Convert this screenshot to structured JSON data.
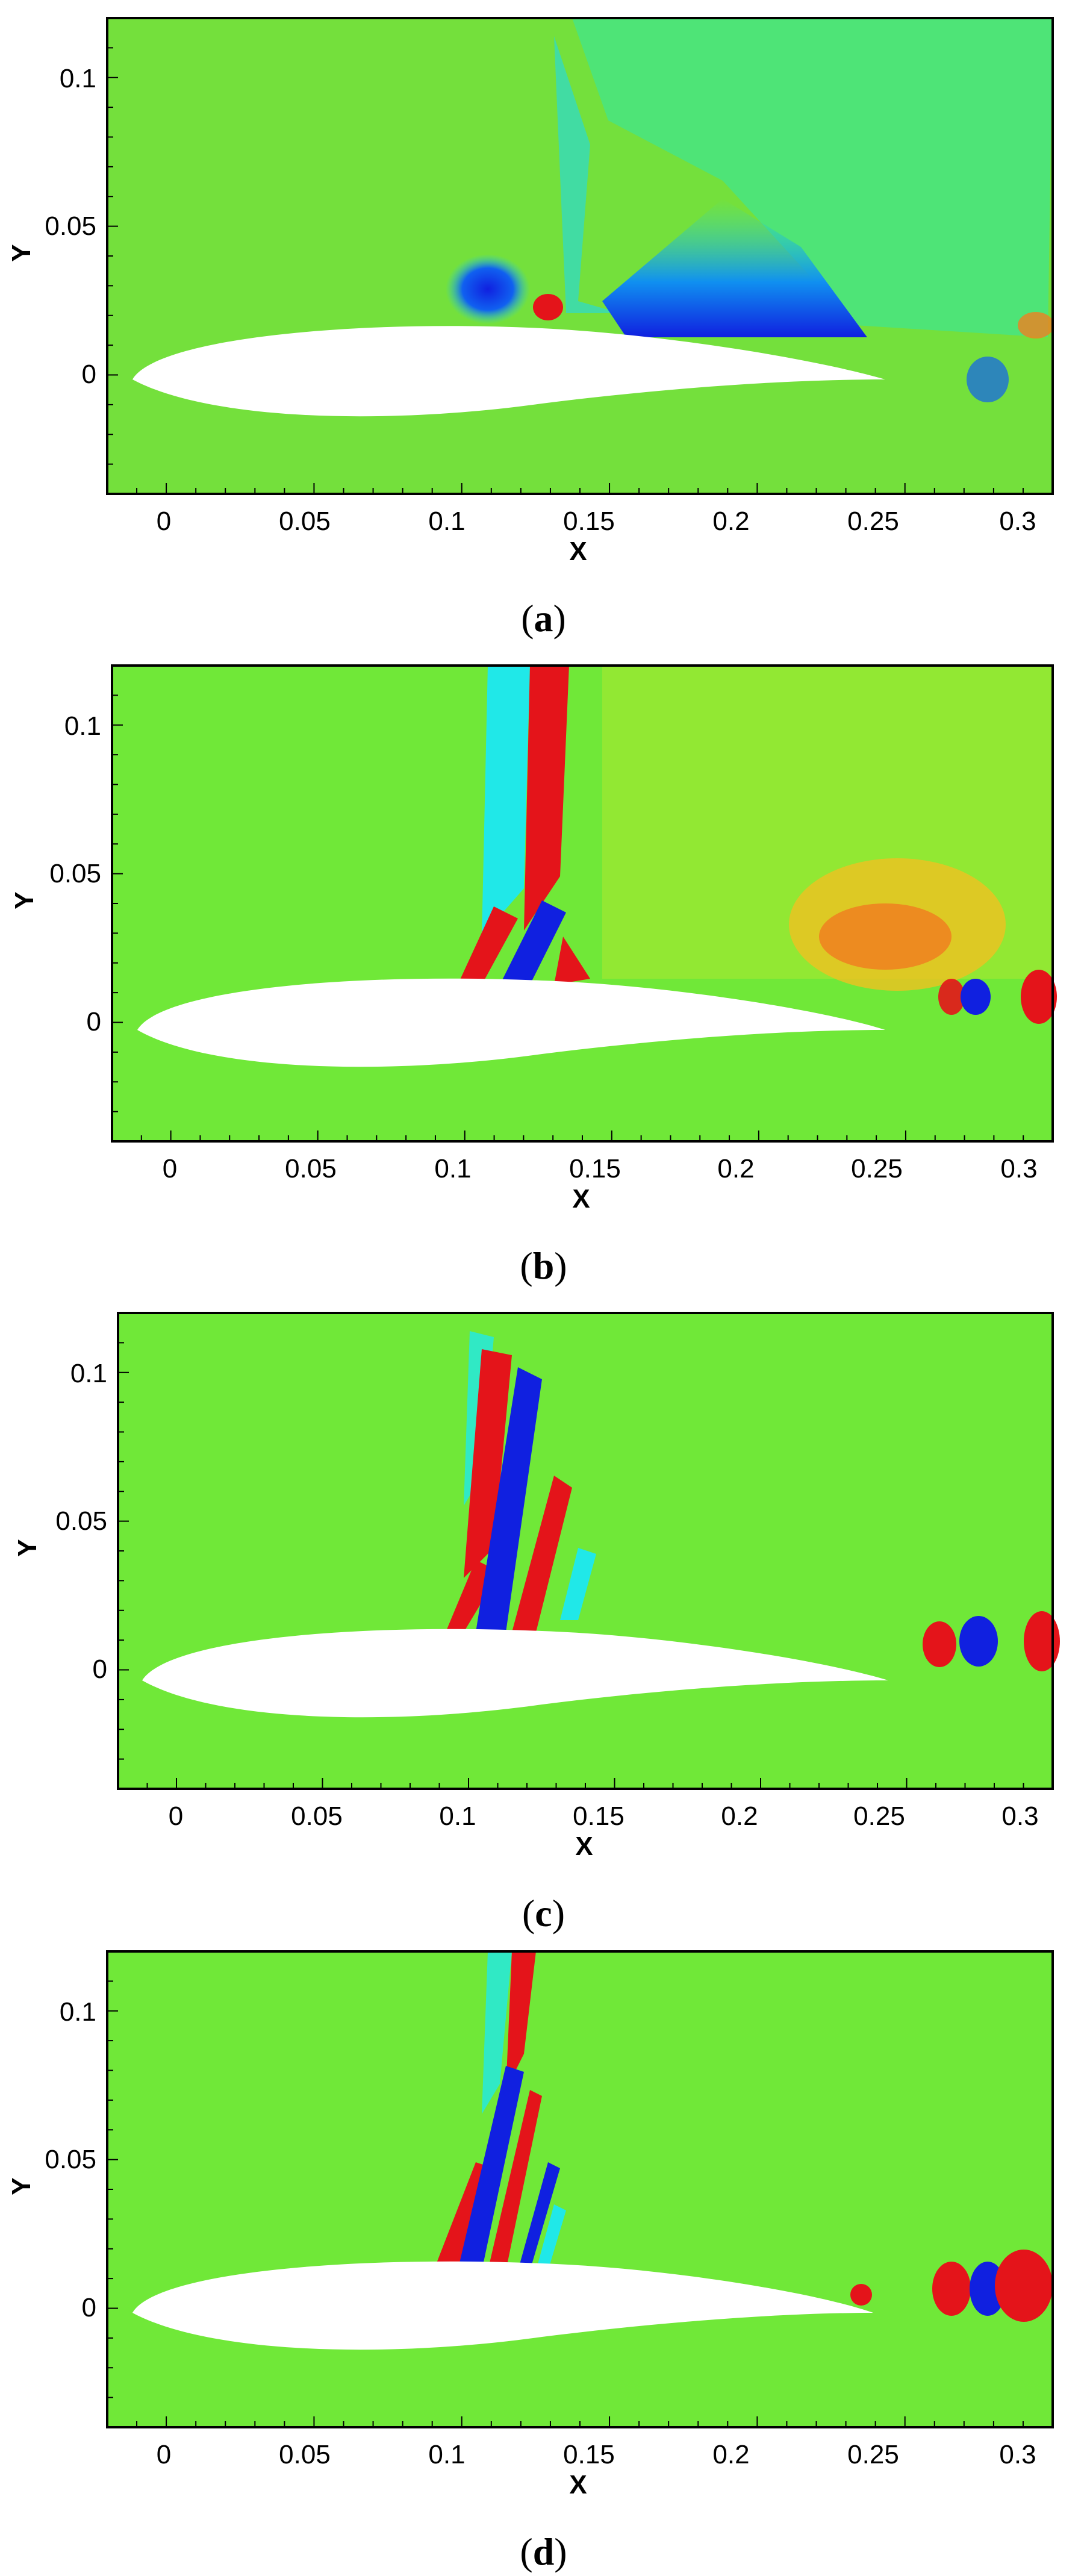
{
  "panels": [
    {
      "id": "a",
      "caption_letter": "a",
      "xlabel": "X",
      "ylabel": "Y",
      "xticks": [
        "0",
        "0.05",
        "0.1",
        "0.15",
        "0.2",
        "0.25",
        "0.3"
      ],
      "yticks": [
        "0",
        "0.05",
        "0.1"
      ]
    },
    {
      "id": "b",
      "caption_letter": "b",
      "xlabel": "X",
      "ylabel": "Y",
      "xticks": [
        "0",
        "0.05",
        "0.1",
        "0.15",
        "0.2",
        "0.25",
        "0.3"
      ],
      "yticks": [
        "0",
        "0.05",
        "0.1"
      ]
    },
    {
      "id": "c",
      "caption_letter": "c",
      "xlabel": "X",
      "ylabel": "Y",
      "xticks": [
        "0",
        "0.05",
        "0.1",
        "0.15",
        "0.2",
        "0.25",
        "0.3"
      ],
      "yticks": [
        "0",
        "0.05",
        "0.1"
      ]
    },
    {
      "id": "d",
      "caption_letter": "d",
      "xlabel": "X",
      "ylabel": "Y",
      "xticks": [
        "0",
        "0.05",
        "0.1",
        "0.15",
        "0.2",
        "0.25",
        "0.3"
      ],
      "yticks": [
        "0",
        "0.05",
        "0.1"
      ]
    }
  ],
  "axes": {
    "xlim": [
      -0.02,
      0.3
    ],
    "ylim": [
      -0.04,
      0.12
    ]
  },
  "colors": {
    "background": "#6ee830",
    "red": "#e4141a",
    "blue": "#1020e0",
    "cyan": "#20e8e8",
    "yellow": "#e8e030",
    "orange": "#f08020"
  }
}
